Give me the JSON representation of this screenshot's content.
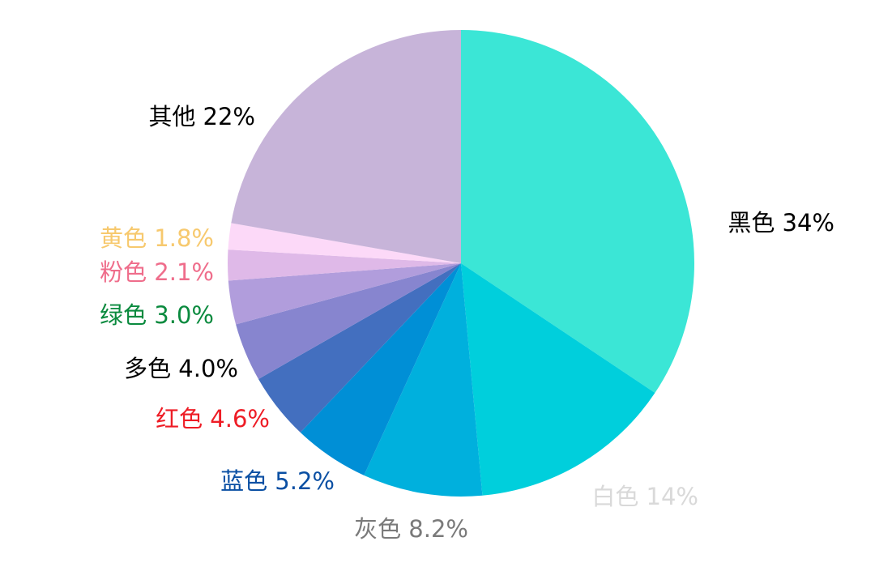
{
  "chart_data": {
    "type": "pie",
    "title": "",
    "start": "12 o'clock",
    "direction": "clockwise",
    "slices": [
      {
        "label": "黑色 34%",
        "value": 34,
        "color": "#3be6d6",
        "label_color": "#000000"
      },
      {
        "label": "白色 14%",
        "value": 14,
        "color": "#00cfdc",
        "label_color": "#d9d9d9"
      },
      {
        "label": "灰色 8.2%",
        "value": 8.2,
        "color": "#00b0dd",
        "label_color": "#7a7a7a"
      },
      {
        "label": "蓝色 5.2%",
        "value": 5.2,
        "color": "#008fd6",
        "label_color": "#0a4fa3"
      },
      {
        "label": "红色 4.6%",
        "value": 4.6,
        "color": "#436fbf",
        "label_color": "#ee1c25"
      },
      {
        "label": "多色 4.0%",
        "value": 4.0,
        "color": "#8785cf",
        "label_color": "#000000"
      },
      {
        "label": "绿色 3.0%",
        "value": 3.0,
        "color": "#b19ddc",
        "label_color": "#0a8a3e"
      },
      {
        "label": "粉色 2.1%",
        "value": 2.1,
        "color": "#dfb9e8",
        "label_color": "#ef6d8b"
      },
      {
        "label": "黄色 1.8%",
        "value": 1.8,
        "color": "#fcd9f8",
        "label_color": "#f7c96e"
      },
      {
        "label": "其他 22%",
        "value": 22,
        "color": "#c7b4d9",
        "label_color": "#000000"
      }
    ]
  }
}
